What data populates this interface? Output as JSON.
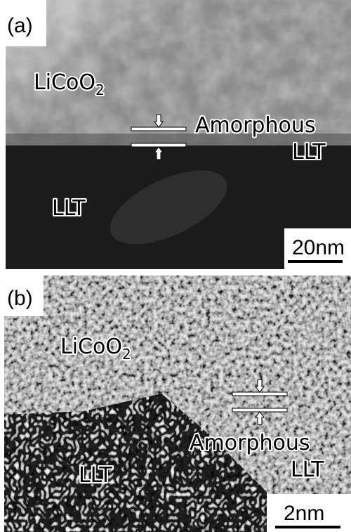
{
  "panels": [
    {
      "label": "(a)",
      "material_top": {
        "main": "LiCoO",
        "sub": "2"
      },
      "interface": "Amorphous",
      "interface_material": "LLT",
      "material_bottom": "LLT",
      "scale_bar": "20nm"
    },
    {
      "label": "(b)",
      "material_top": {
        "main": "LiCoO",
        "sub": "2"
      },
      "interface": "Amorphous",
      "interface_material": "LLT",
      "material_bottom": "LLT",
      "scale_bar": "2nm"
    }
  ]
}
